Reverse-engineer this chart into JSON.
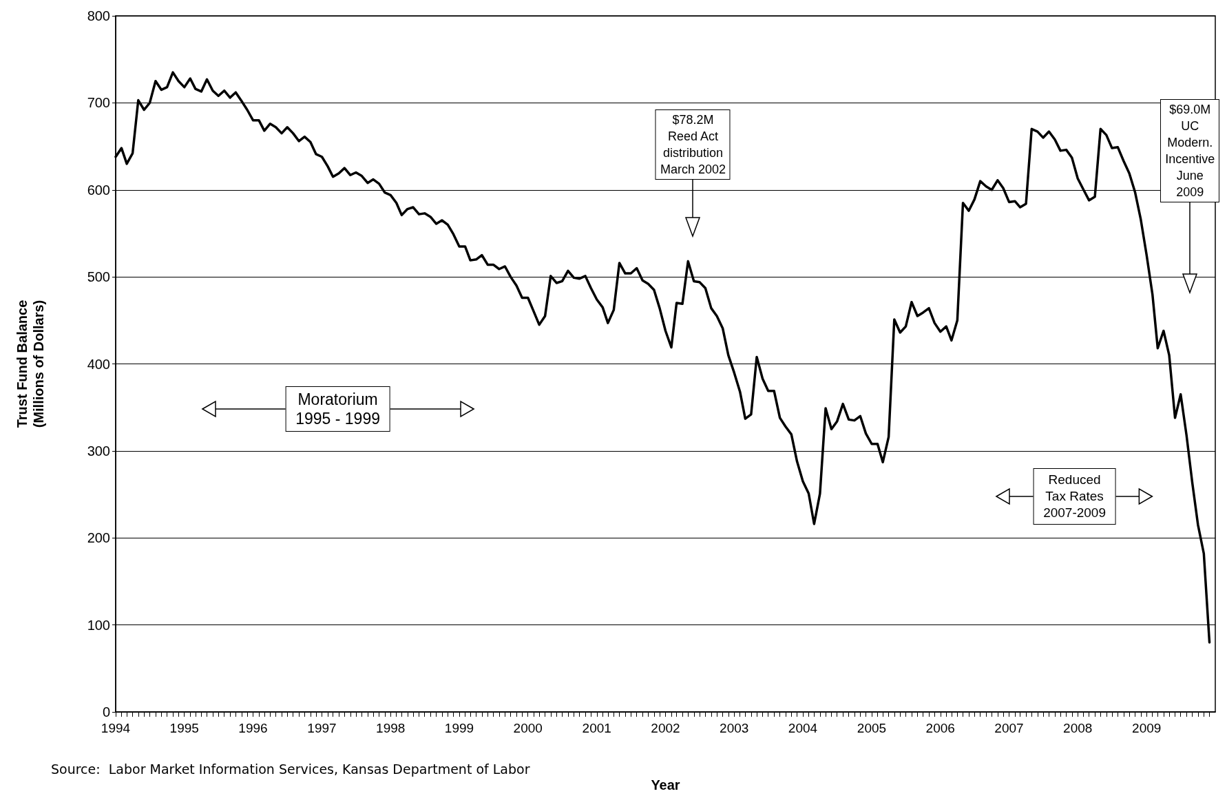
{
  "chart_data": {
    "type": "line",
    "xlabel": "Year",
    "ylabel": "Trust Fund Balance\n(Millions of Dollars)",
    "x": [
      "1994-01",
      "1994-02",
      "1994-03",
      "1994-04",
      "1994-05",
      "1994-06",
      "1994-07",
      "1994-08",
      "1994-09",
      "1994-10",
      "1994-11",
      "1994-12",
      "1995-01",
      "1995-02",
      "1995-03",
      "1995-04",
      "1995-05",
      "1995-06",
      "1995-07",
      "1995-08",
      "1995-09",
      "1995-10",
      "1995-11",
      "1995-12",
      "1996-01",
      "1996-02",
      "1996-03",
      "1996-04",
      "1996-05",
      "1996-06",
      "1996-07",
      "1996-08",
      "1996-09",
      "1996-10",
      "1996-11",
      "1996-12",
      "1997-01",
      "1997-02",
      "1997-03",
      "1997-04",
      "1997-05",
      "1997-06",
      "1997-07",
      "1997-08",
      "1997-09",
      "1997-10",
      "1997-11",
      "1997-12",
      "1998-01",
      "1998-02",
      "1998-03",
      "1998-04",
      "1998-05",
      "1998-06",
      "1998-07",
      "1998-08",
      "1998-09",
      "1998-10",
      "1998-11",
      "1998-12",
      "1999-01",
      "1999-02",
      "1999-03",
      "1999-04",
      "1999-05",
      "1999-06",
      "1999-07",
      "1999-08",
      "1999-09",
      "1999-10",
      "1999-11",
      "1999-12",
      "2000-01",
      "2000-02",
      "2000-03",
      "2000-04",
      "2000-05",
      "2000-06",
      "2000-07",
      "2000-08",
      "2000-09",
      "2000-10",
      "2000-11",
      "2000-12",
      "2001-01",
      "2001-02",
      "2001-03",
      "2001-04",
      "2001-05",
      "2001-06",
      "2001-07",
      "2001-08",
      "2001-09",
      "2001-10",
      "2001-11",
      "2001-12",
      "2002-01",
      "2002-02",
      "2002-03",
      "2002-04",
      "2002-05",
      "2002-06",
      "2002-07",
      "2002-08",
      "2002-09",
      "2002-10",
      "2002-11",
      "2002-12",
      "2003-01",
      "2003-02",
      "2003-03",
      "2003-04",
      "2003-05",
      "2003-06",
      "2003-07",
      "2003-08",
      "2003-09",
      "2003-10",
      "2003-11",
      "2003-12",
      "2004-01",
      "2004-02",
      "2004-03",
      "2004-04",
      "2004-05",
      "2004-06",
      "2004-07",
      "2004-08",
      "2004-09",
      "2004-10",
      "2004-11",
      "2004-12",
      "2005-01",
      "2005-02",
      "2005-03",
      "2005-04",
      "2005-05",
      "2005-06",
      "2005-07",
      "2005-08",
      "2005-09",
      "2005-10",
      "2005-11",
      "2005-12",
      "2006-01",
      "2006-02",
      "2006-03",
      "2006-04",
      "2006-05",
      "2006-06",
      "2006-07",
      "2006-08",
      "2006-09",
      "2006-10",
      "2006-11",
      "2006-12",
      "2007-01",
      "2007-02",
      "2007-03",
      "2007-04",
      "2007-05",
      "2007-06",
      "2007-07",
      "2007-08",
      "2007-09",
      "2007-10",
      "2007-11",
      "2007-12",
      "2008-01",
      "2008-02",
      "2008-03",
      "2008-04",
      "2008-05",
      "2008-06",
      "2008-07",
      "2008-08",
      "2008-09",
      "2008-10",
      "2008-11",
      "2008-12",
      "2009-01",
      "2009-02",
      "2009-03",
      "2009-04",
      "2009-05",
      "2009-06",
      "2009-07",
      "2009-08",
      "2009-09",
      "2009-10",
      "2009-11",
      "2009-12"
    ],
    "series": [
      {
        "color": "#000000",
        "values": [
          638,
          648,
          630,
          642,
          703,
          692,
          700,
          725,
          715,
          718,
          735,
          725,
          718,
          728,
          716,
          713,
          727,
          714,
          708,
          714,
          706,
          712,
          702,
          692,
          680,
          680,
          668,
          676,
          672,
          665,
          672,
          665,
          656,
          661,
          655,
          641,
          638,
          627,
          615,
          619,
          625,
          617,
          620,
          616,
          608,
          612,
          607,
          597,
          594,
          585,
          571,
          578,
          580,
          572,
          573,
          569,
          561,
          565,
          560,
          549,
          535,
          535,
          519,
          520,
          525,
          514,
          514,
          509,
          512,
          500,
          490,
          476,
          476,
          460,
          445,
          455,
          501,
          493,
          495,
          507,
          499,
          498,
          501,
          487,
          474,
          465,
          447,
          462,
          516,
          504,
          504,
          510,
          496,
          492,
          485,
          464,
          438,
          419,
          470,
          469,
          518,
          495,
          494,
          487,
          464,
          455,
          441,
          410,
          390,
          368,
          337,
          342,
          408,
          383,
          369,
          369,
          338,
          328,
          319,
          288,
          265,
          251,
          216,
          251,
          349,
          325,
          334,
          354,
          336,
          335,
          340,
          320,
          308,
          308,
          287,
          316,
          451,
          436,
          443,
          471,
          455,
          459,
          464,
          447,
          437,
          443,
          427,
          450,
          585,
          576,
          589,
          610,
          604,
          600,
          611,
          602,
          586,
          587,
          580,
          584,
          670,
          667,
          660,
          667,
          658,
          645,
          646,
          637,
          613,
          600,
          588,
          592,
          670,
          663,
          648,
          649,
          633,
          619,
          597,
          566,
          525,
          480,
          418,
          438,
          410,
          338,
          365,
          318,
          263,
          215,
          182,
          80
        ]
      }
    ],
    "xlim": [
      "1994-01",
      "2010-01"
    ],
    "xticks": [
      "1994",
      "1995",
      "1996",
      "1997",
      "1998",
      "1999",
      "2000",
      "2001",
      "2002",
      "2003",
      "2004",
      "2005",
      "2006",
      "2007",
      "2008",
      "2009"
    ],
    "ylim": [
      0,
      800
    ],
    "yticks": [
      0,
      100,
      200,
      300,
      400,
      500,
      600,
      700,
      800
    ],
    "grid": "y",
    "annotations": [
      "$78.2M\nReed Act\ndistribution\nMarch 2002",
      "$69.0M\nUC\nModern.\nIncentive\nJune\n2009",
      "Moratorium\n1995 - 1999",
      "Reduced\nTax Rates\n2007-2009",
      "Source:  Labor Market Information Services, Kansas Department of Labor"
    ]
  }
}
